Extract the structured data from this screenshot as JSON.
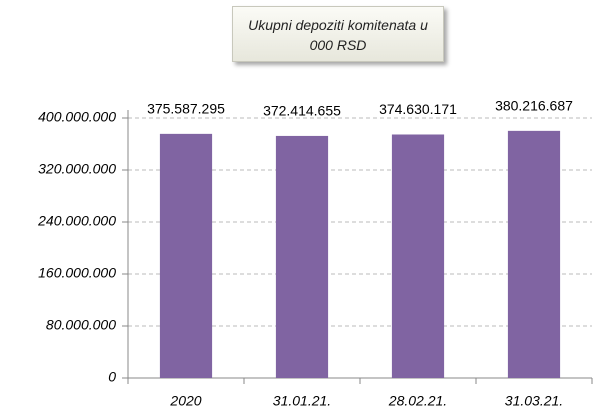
{
  "chart_data": {
    "type": "bar",
    "title": "Ukupni depoziti komitenata u 000 RSD",
    "categories": [
      "2020",
      "31.01.21.",
      "28.02.21.",
      "31.03.21."
    ],
    "values": [
      375587295,
      372414655,
      374630171,
      380216687
    ],
    "value_labels": [
      "375.587.295",
      "372.414.655",
      "374.630.171",
      "380.216.687"
    ],
    "color": "#8064a2",
    "ylim": [
      0,
      400000000
    ],
    "yticks": [
      {
        "value": 0,
        "label": "0"
      },
      {
        "value": 80000000,
        "label": "80.000.000"
      },
      {
        "value": 160000000,
        "label": "160.000.000"
      },
      {
        "value": 240000000,
        "label": "240.000.000"
      },
      {
        "value": 320000000,
        "label": "320.000.000"
      },
      {
        "value": 400000000,
        "label": "400.000.000"
      }
    ],
    "grid": true
  }
}
